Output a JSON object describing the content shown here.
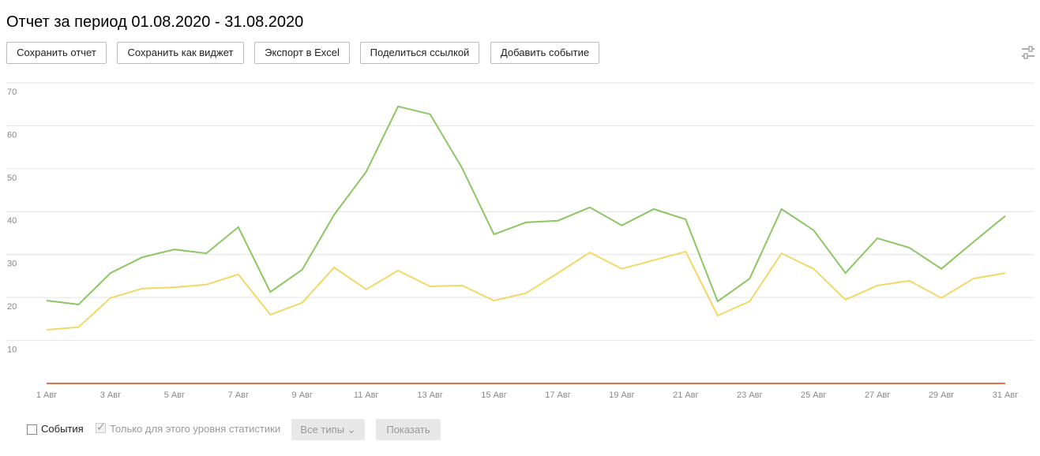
{
  "header": {
    "title": "Отчет за период 01.08.2020 - 31.08.2020"
  },
  "buttons": [
    "Сохранить отчет",
    "Сохранить как виджет",
    "Экспорт в Excel",
    "Поделиться ссылкой",
    "Добавить событие"
  ],
  "chart_data": {
    "type": "line",
    "categories": [
      "1 Авг",
      null,
      "3 Авг",
      null,
      "5 Авг",
      null,
      "7 Авг",
      null,
      "9 Авг",
      null,
      "11 Авг",
      null,
      "13 Авг",
      null,
      "15 Авг",
      null,
      "17 Авг",
      null,
      "19 Авг",
      null,
      "21 Авг",
      null,
      "23 Авг",
      null,
      "25 Авг",
      null,
      "27 Авг",
      null,
      "29 Авг",
      null,
      "31 Авг"
    ],
    "series": [
      {
        "color": "#8cc665",
        "values": [
          19.3,
          18.4,
          25.7,
          29.4,
          31.2,
          30.3,
          36.4,
          21.3,
          26.5,
          39.3,
          49.3,
          64.5,
          62.7,
          50.2,
          34.7,
          37.5,
          37.9,
          41,
          36.8,
          40.6,
          38.2,
          19.1,
          24.4,
          40.6,
          35.7,
          25.7,
          33.8,
          31.6,
          26.7,
          32.9,
          39
        ]
      },
      {
        "color": "#f2d865",
        "values": [
          12.5,
          13.1,
          19.9,
          22.1,
          22.4,
          23,
          25.4,
          16,
          18.8,
          27,
          21.9,
          26.3,
          22.6,
          22.8,
          19.3,
          21,
          25.7,
          30.5,
          26.7,
          28.7,
          30.7,
          15.8,
          19.1,
          30.3,
          26.7,
          19.5,
          22.8,
          23.9,
          19.9,
          24.4,
          25.7
        ]
      },
      {
        "color": "#e8704a",
        "values": [
          0,
          0,
          0,
          0,
          0,
          0,
          0,
          0,
          0,
          0,
          0,
          0,
          0,
          0,
          0,
          0,
          0,
          0,
          0,
          0,
          0,
          0,
          0,
          0,
          0,
          0,
          0,
          0,
          0,
          0,
          0
        ]
      }
    ],
    "ylim": [
      0,
      70
    ],
    "yticks": [
      10,
      20,
      30,
      40,
      50,
      60,
      70
    ],
    "grid": true
  },
  "controls": {
    "events": "События",
    "level_only": "Только для этого уровня статистики",
    "types": "Все типы",
    "show": "Показать"
  }
}
